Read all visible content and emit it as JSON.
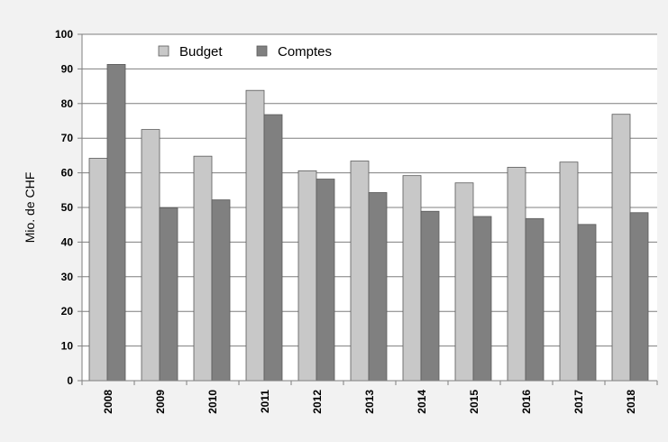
{
  "chart_data": {
    "type": "bar",
    "title": "",
    "xlabel": "",
    "ylabel": "Mio. de CHF",
    "ylim": [
      0,
      100
    ],
    "yticks": [
      0,
      10,
      20,
      30,
      40,
      50,
      60,
      70,
      80,
      90,
      100
    ],
    "grid": true,
    "legend_position": "top-left",
    "categories": [
      "2008",
      "2009",
      "2010",
      "2011",
      "2012",
      "2013",
      "2014",
      "2015",
      "2016",
      "2017",
      "2018"
    ],
    "series": [
      {
        "name": "Budget",
        "color": "#c8c8c8",
        "values": [
          64.2,
          72.5,
          64.8,
          83.8,
          60.6,
          63.4,
          59.2,
          57.1,
          61.6,
          63.1,
          76.9
        ]
      },
      {
        "name": "Comptes",
        "color": "#808080",
        "values": [
          91.3,
          49.9,
          52.2,
          76.8,
          58.2,
          54.3,
          48.9,
          47.4,
          46.8,
          45.1,
          48.5
        ]
      }
    ]
  }
}
